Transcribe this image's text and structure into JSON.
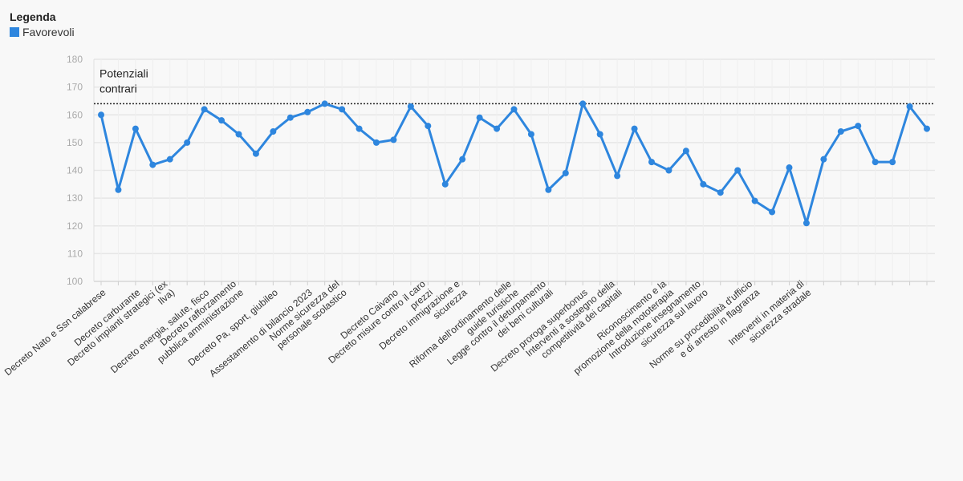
{
  "legend": {
    "title": "Legenda",
    "entries": [
      "Favorevoli"
    ]
  },
  "chart_data": {
    "type": "line",
    "title": "",
    "xlabel": "",
    "ylabel": "",
    "ylim": [
      100,
      180
    ],
    "yticks": [
      100,
      110,
      120,
      130,
      140,
      150,
      160,
      170,
      180
    ],
    "grid": true,
    "legend_position": "top-left",
    "colors": {
      "series": "#2e86de",
      "grid": "#e6e6e6",
      "reference": "#222222"
    },
    "reference_line": {
      "value": 164,
      "label_lines": [
        "Potenziali",
        "contrari"
      ]
    },
    "category_labels": [
      {
        "index": 0,
        "lines": [
          "Decreto Nato e Ssn calabrese"
        ]
      },
      {
        "index": 2,
        "lines": [
          "Decreto carburante"
        ]
      },
      {
        "index": 4,
        "lines": [
          "Decreto impianti strategici (ex",
          "Ilva)"
        ]
      },
      {
        "index": 6,
        "lines": [
          "Decreto energia, salute, fisco"
        ]
      },
      {
        "index": 8,
        "lines": [
          "Decreto rafforzamento",
          "pubblica amministrazione"
        ]
      },
      {
        "index": 10,
        "lines": [
          "Decreto Pa, sport, giubileo"
        ]
      },
      {
        "index": 12,
        "lines": [
          "Assestamento di bilancio 2023"
        ]
      },
      {
        "index": 14,
        "lines": [
          "Norme sicurezza del",
          "personale scolastico"
        ]
      },
      {
        "index": 17,
        "lines": [
          "Decreto Caivano"
        ]
      },
      {
        "index": 19,
        "lines": [
          "Decreto misure contro il caro",
          "prezzi"
        ]
      },
      {
        "index": 21,
        "lines": [
          "Decreto immigrazione e",
          "sicurezza"
        ]
      },
      {
        "index": 24,
        "lines": [
          "Riforma dell'ordinamento delle",
          "guide turistiche"
        ]
      },
      {
        "index": 26,
        "lines": [
          "Legge contro il deturpamento",
          "dei beni culturali"
        ]
      },
      {
        "index": 28,
        "lines": [
          "Decreto proroga superbonus"
        ]
      },
      {
        "index": 30,
        "lines": [
          "Interventi a sostegno della",
          "competitività dei capitali"
        ]
      },
      {
        "index": 33,
        "lines": [
          "Riconoscimento e la",
          "promozione della mototerapia"
        ]
      },
      {
        "index": 35,
        "lines": [
          "Introduzione insegnamento",
          "sicurezza sul lavoro"
        ]
      },
      {
        "index": 38,
        "lines": [
          "Norme su procedibilità d'ufficio",
          "e di arresto in flagranza"
        ]
      },
      {
        "index": 41,
        "lines": [
          "Interventi in materia di",
          "sicurezza stradale"
        ]
      }
    ],
    "series": [
      {
        "name": "Favorevoli",
        "values": [
          160,
          133,
          155,
          142,
          144,
          150,
          162,
          158,
          153,
          146,
          154,
          159,
          161,
          164,
          162,
          155,
          150,
          151,
          163,
          156,
          135,
          144,
          159,
          155,
          162,
          153,
          133,
          139,
          164,
          153,
          138,
          155,
          143,
          140,
          147,
          135,
          132,
          140,
          129,
          125,
          141,
          121,
          144,
          154,
          156,
          143,
          143,
          163,
          155
        ]
      }
    ]
  }
}
